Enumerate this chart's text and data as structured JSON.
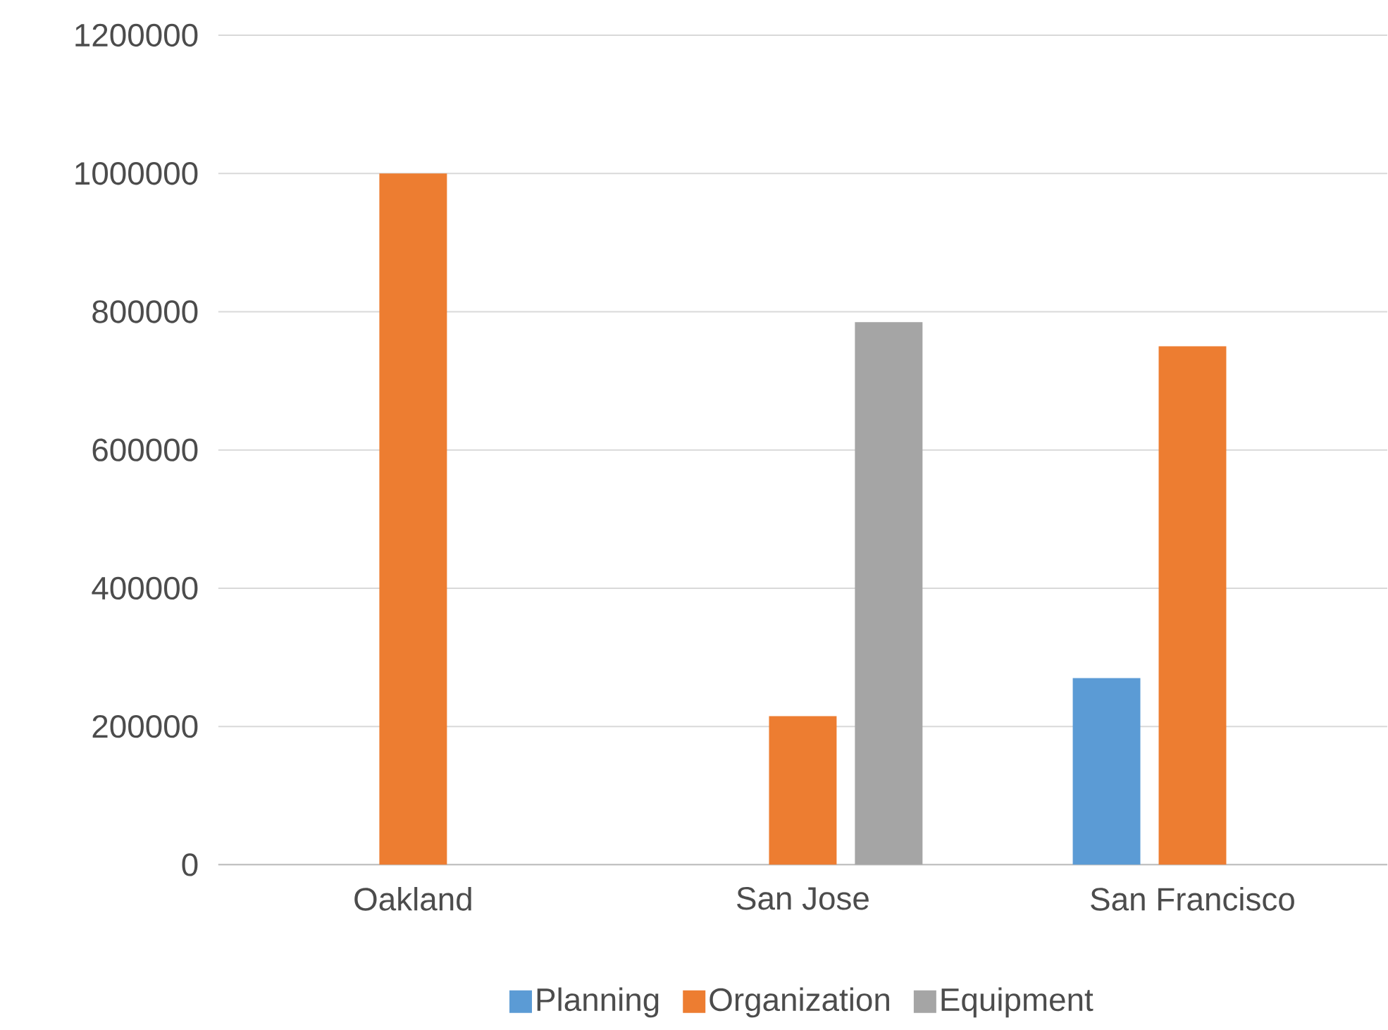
{
  "chart_data": {
    "type": "bar",
    "categories": [
      "Oakland",
      "San Jose",
      "San Francisco"
    ],
    "series": [
      {
        "name": "Planning",
        "color": "#5b9bd5",
        "values": [
          null,
          null,
          270000
        ]
      },
      {
        "name": "Organization",
        "color": "#ed7d31",
        "values": [
          1000000,
          215000,
          750000
        ]
      },
      {
        "name": "Equipment",
        "color": "#a5a5a5",
        "values": [
          null,
          785000,
          null
        ]
      }
    ],
    "ylim": [
      0,
      1200000
    ],
    "yticks": [
      0,
      200000,
      400000,
      600000,
      800000,
      1000000,
      1200000
    ],
    "grid": "y",
    "legend": "bottom"
  }
}
